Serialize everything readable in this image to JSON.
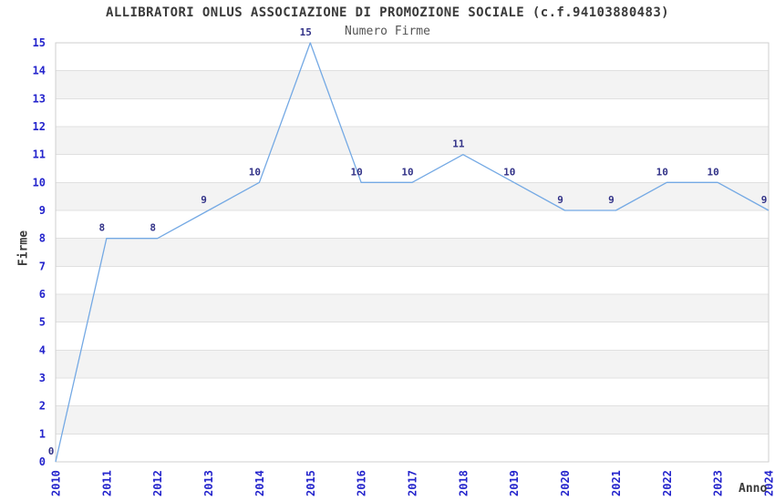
{
  "page": {
    "background": "#ffffff"
  },
  "chart_data": {
    "type": "line",
    "title": "ALLIBRATORI ONLUS ASSOCIAZIONE DI PROMOZIONE SOCIALE (c.f.94103880483)",
    "subtitle": "Numero Firme",
    "xlabel": "Anno",
    "ylabel": "Firme",
    "categories": [
      "2010",
      "2011",
      "2012",
      "2013",
      "2014",
      "2015",
      "2016",
      "2017",
      "2018",
      "2019",
      "2020",
      "2021",
      "2022",
      "2023",
      "2024"
    ],
    "values": [
      0,
      8,
      8,
      9,
      10,
      15,
      10,
      10,
      11,
      10,
      9,
      9,
      10,
      10,
      9
    ],
    "ylim": [
      0,
      15
    ],
    "ytick_step": 1,
    "grid": "horizontal",
    "band_rows": true,
    "legend_position": "none",
    "colors": {
      "line": "#74a9e4",
      "tick_label": "#2424cc",
      "point_label": "#333388",
      "title": "#3a3a3a",
      "subtitle": "#555555",
      "axis_label": "#3a3a3a",
      "gridline": "#e0e0e0",
      "band": "#f3f3f3",
      "border": "#cfcfcf",
      "background": "#ffffff"
    }
  }
}
